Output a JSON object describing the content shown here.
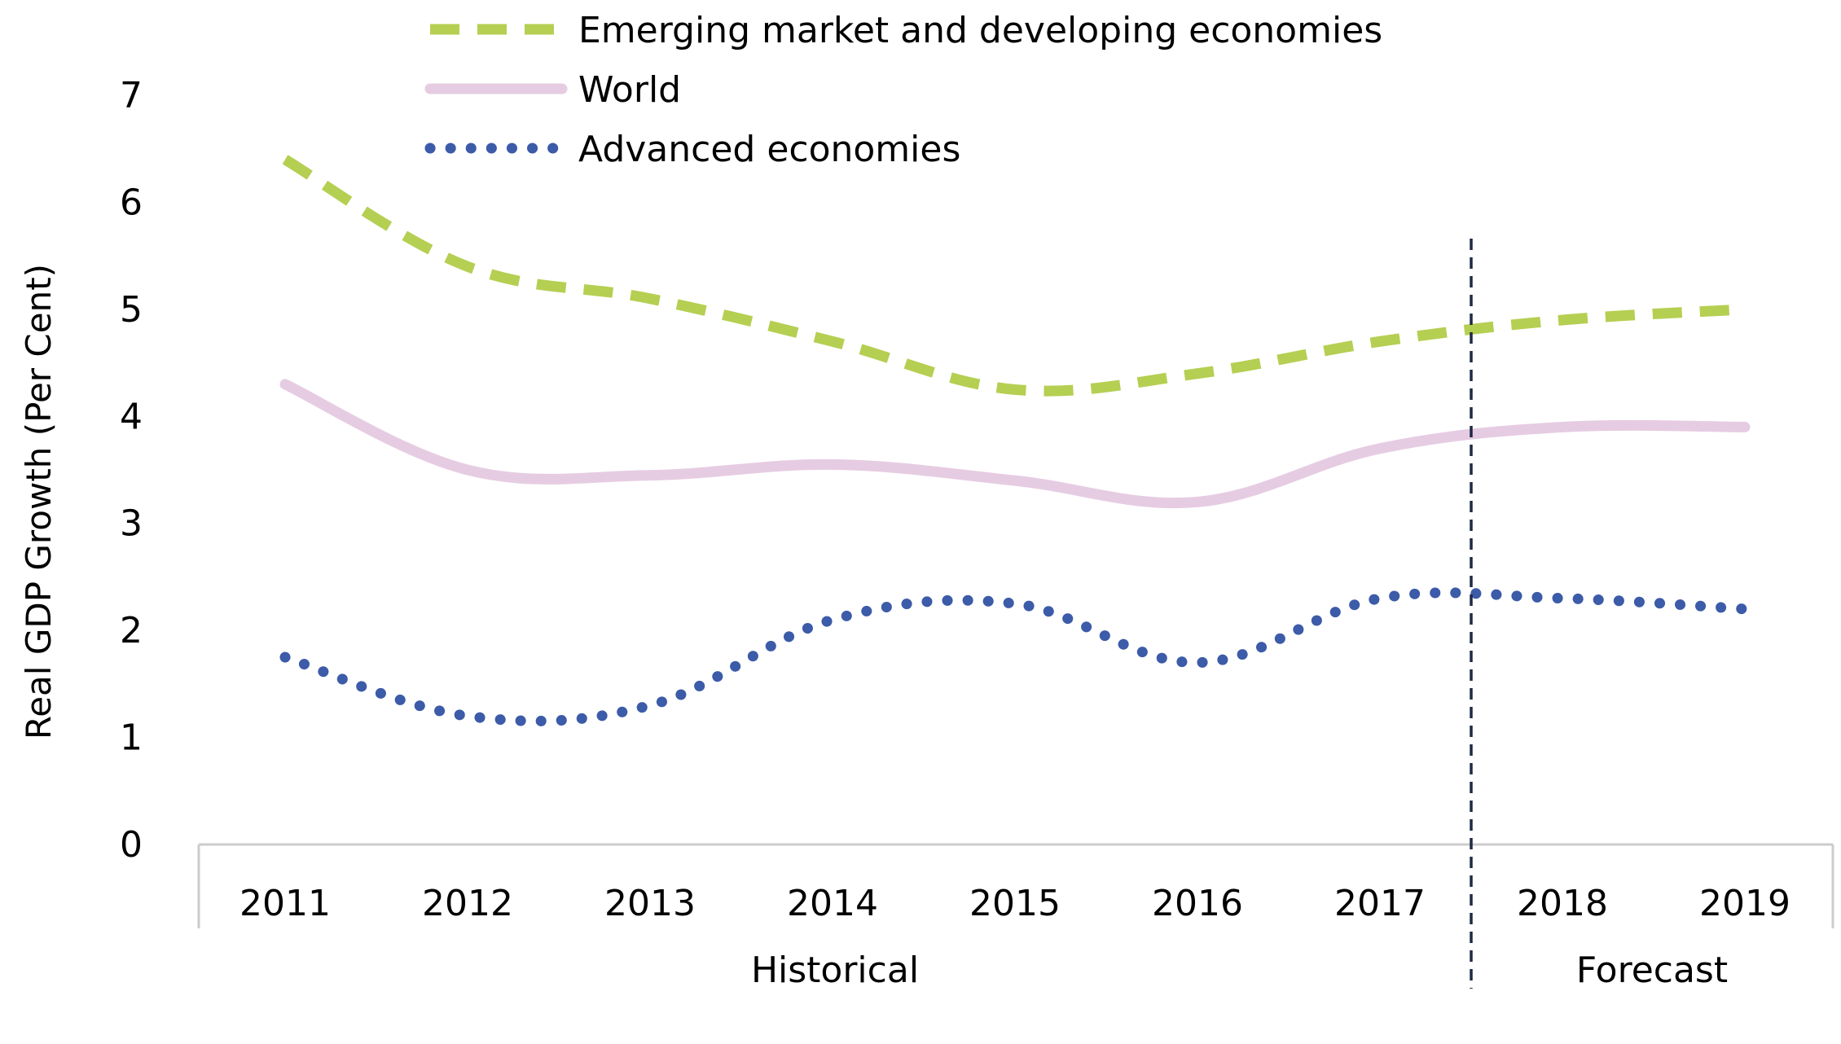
{
  "chart_data": {
    "type": "line",
    "ylabel": "Real GDP Growth (Per Cent)",
    "ylim": [
      0,
      7
    ],
    "yticks": [
      0,
      1,
      2,
      3,
      4,
      5,
      6,
      7
    ],
    "categories": [
      "2011",
      "2012",
      "2013",
      "2014",
      "2015",
      "2016",
      "2017",
      "2018",
      "2019"
    ],
    "groups": [
      {
        "label": "Historical",
        "from": "2011",
        "to": "2017"
      },
      {
        "label": "Forecast",
        "from": "2018",
        "to": "2019"
      }
    ],
    "divider_between": [
      "2017",
      "2018"
    ],
    "grid": false,
    "legend_position": "top",
    "series": [
      {
        "name": "Emerging market and developing economies",
        "values": [
          6.4,
          5.4,
          5.1,
          4.7,
          4.25,
          4.4,
          4.7,
          4.9,
          5.0
        ],
        "color": "#b5cf52",
        "style": "dashed"
      },
      {
        "name": "World",
        "values": [
          4.3,
          3.5,
          3.45,
          3.55,
          3.4,
          3.2,
          3.7,
          3.9,
          3.9
        ],
        "color": "#e6cce3",
        "style": "solid"
      },
      {
        "name": "Advanced economies",
        "values": [
          1.75,
          1.2,
          1.3,
          2.1,
          2.25,
          1.7,
          2.3,
          2.3,
          2.2
        ],
        "color": "#3c5ba8",
        "style": "dotted"
      }
    ]
  }
}
